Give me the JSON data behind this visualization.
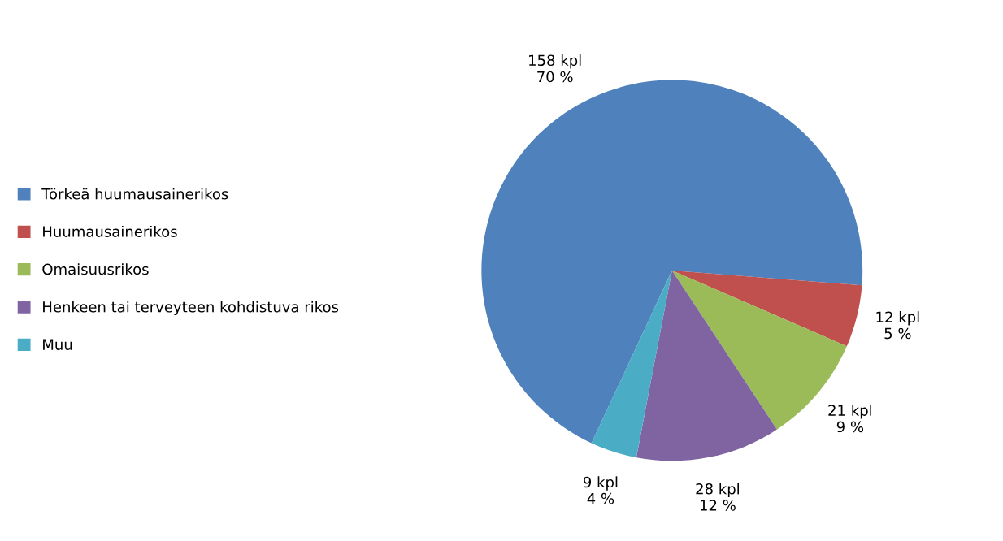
{
  "chart_data": {
    "type": "pie",
    "categories": [
      "Törkeä huumausainerikos",
      "Huumausainerikos",
      "Omaisuusrikos",
      "Henkeen tai terveyteen kohdistuva rikos",
      "Muu"
    ],
    "values": [
      158,
      12,
      21,
      28,
      9
    ],
    "colors": [
      "#4f81bd",
      "#c0504d",
      "#9bbb59",
      "#8064a2",
      "#4bacc6"
    ],
    "value_labels": [
      "158 kpl\n70 %",
      "12 kpl\n5 %",
      "21 kpl\n9 %",
      "28 kpl\n12 %",
      "9 kpl\n4 %"
    ],
    "legend": "left"
  }
}
